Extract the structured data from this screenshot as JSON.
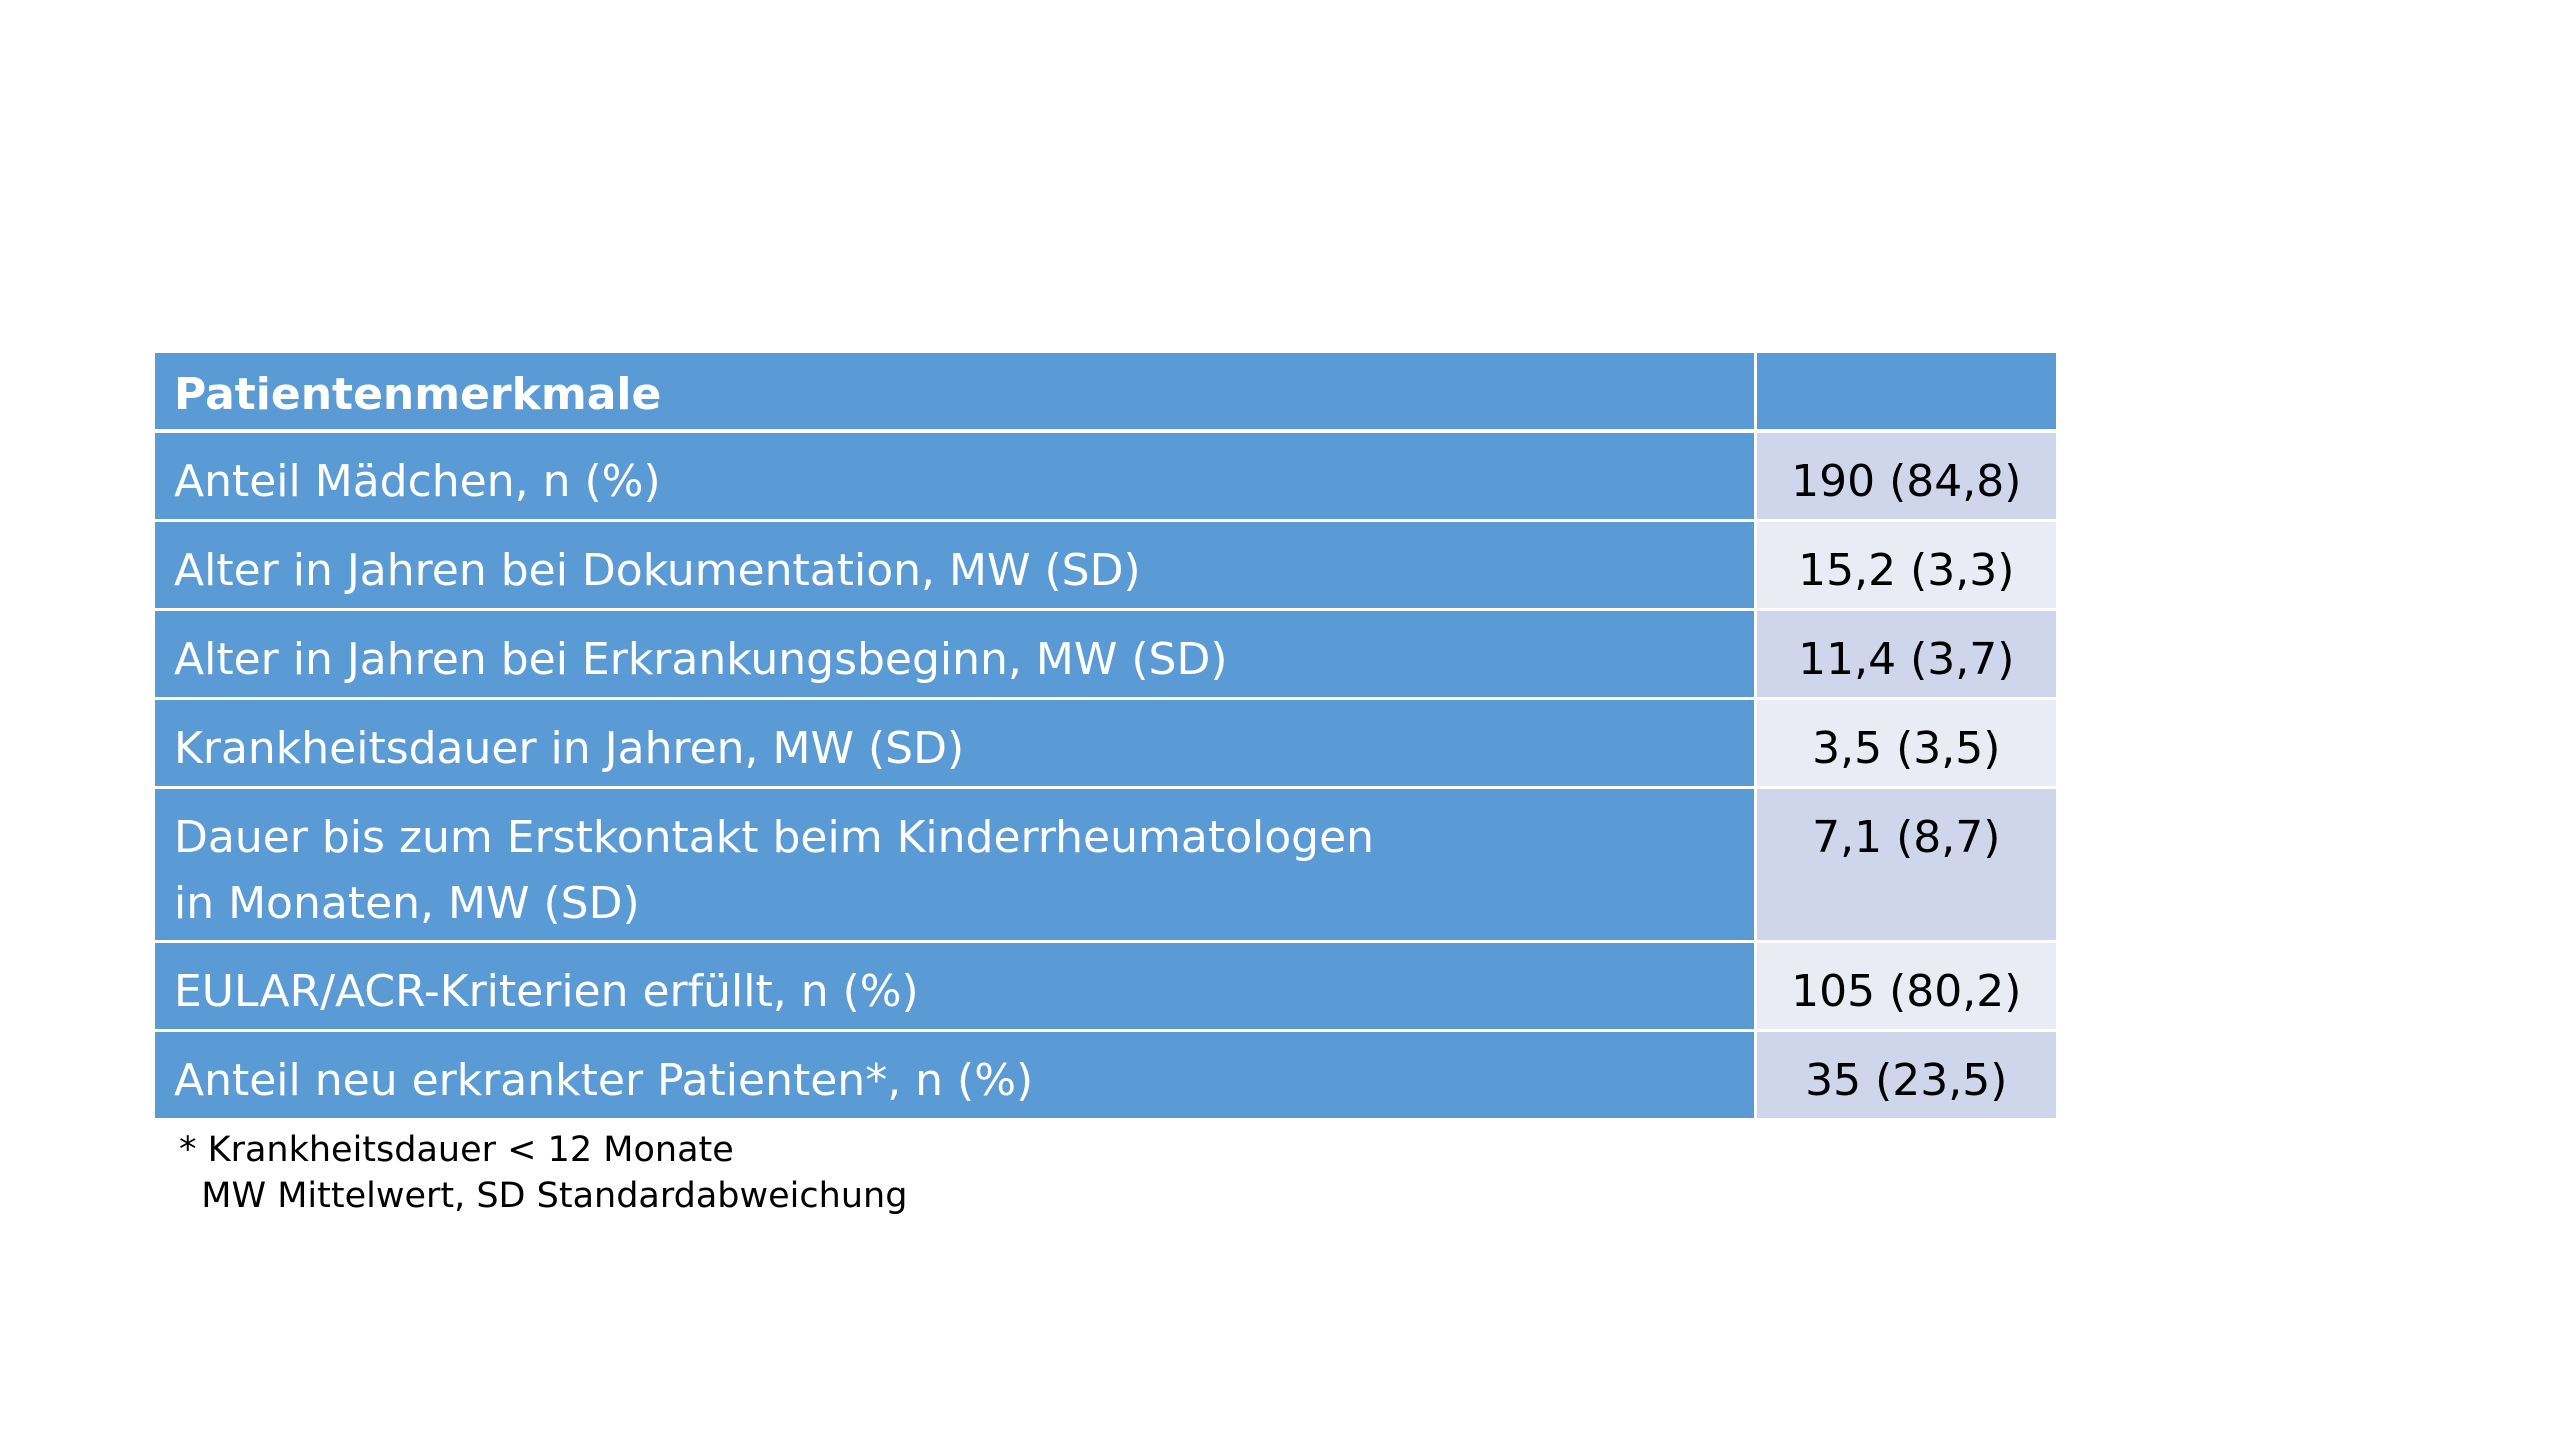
{
  "table": {
    "header": {
      "label": "Patientenmerkmale",
      "value": ""
    },
    "rows": [
      {
        "label": "Anteil Mädchen, n (%)",
        "value": "190 (84,8)"
      },
      {
        "label": "Alter in Jahren bei Dokumentation, MW (SD)",
        "value": "15,2 (3,3)"
      },
      {
        "label": "Alter in Jahren bei Erkrankungsbeginn, MW (SD)",
        "value": "11,4 (3,7)"
      },
      {
        "label": "Krankheitsdauer in Jahren, MW (SD)",
        "value": "3,5 (3,5)"
      },
      {
        "label_line1": "Dauer bis zum Erstkontakt beim Kinderrheumatologen",
        "label_line2": "in Monaten, MW (SD)",
        "value": "7,1 (8,7)"
      },
      {
        "label": "EULAR/ACR-Kriterien erfüllt, n (%)",
        "value": "105 (80,2)"
      },
      {
        "label": "Anteil neu erkrankter Patienten*, n (%)",
        "value": "35 (23,5)"
      }
    ]
  },
  "footnote": {
    "line1": "* Krankheitsdauer < 12 Monate",
    "line2": "MW Mittelwert, SD Standardabweichung"
  },
  "colors": {
    "header_fill": "#5b9bd5",
    "value_fill_dark": "#cfd6eb",
    "value_fill_light": "#e9ecf5"
  }
}
